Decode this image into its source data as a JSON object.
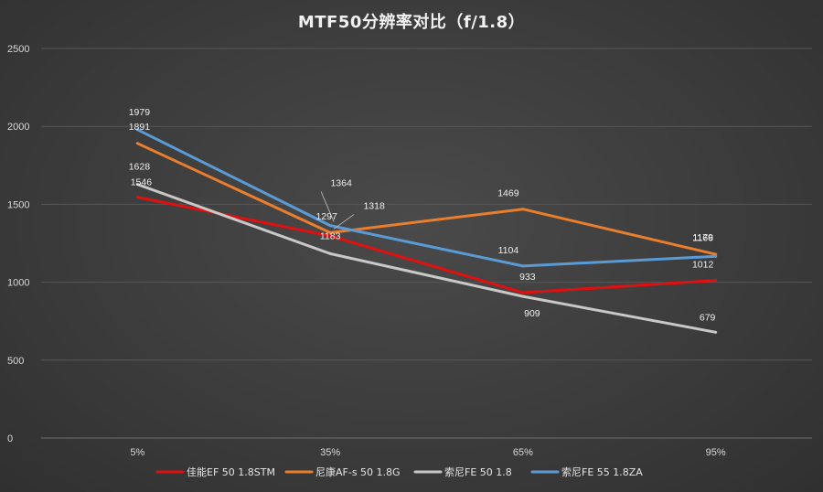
{
  "chart_data": {
    "type": "line",
    "title": "MTF50分辨率对比（f/1.8）",
    "xlabel": "",
    "ylabel": "",
    "categories": [
      "5%",
      "35%",
      "65%",
      "95%"
    ],
    "ylim": [
      0,
      2500
    ],
    "yticks": [
      0,
      500,
      1000,
      1500,
      2000,
      2500
    ],
    "grid": true,
    "legend_position": "bottom",
    "series": [
      {
        "name": "佳能EF 50 1.8STM",
        "color": "#e01010",
        "values": [
          1546,
          1297,
          933,
          1012
        ]
      },
      {
        "name": "尼康AF-s 50 1.8G",
        "color": "#e87e2e",
        "values": [
          1891,
          1318,
          1469,
          1179
        ]
      },
      {
        "name": "索尼FE 50 1.8",
        "color": "#c8c8c8",
        "values": [
          1628,
          1183,
          909,
          679
        ]
      },
      {
        "name": "索尼FE 55 1.8ZA",
        "color": "#5b9bd5",
        "values": [
          1979,
          1364,
          1104,
          1166
        ]
      }
    ]
  }
}
